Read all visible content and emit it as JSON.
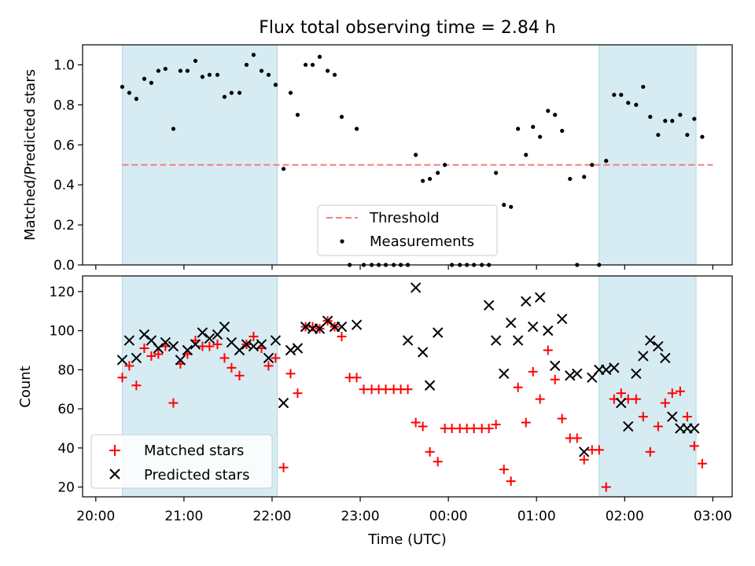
{
  "chart_data": [
    {
      "type": "scatter",
      "title": "Flux total observing time = 2.84 h",
      "ylabel": "Matched/Predicted stars",
      "xlabel": "",
      "xlim": [
        19.85,
        27.22
      ],
      "ylim": [
        0.0,
        1.1
      ],
      "yticks": [
        0.0,
        0.2,
        0.4,
        0.6,
        0.8,
        1.0
      ],
      "ytick_labels": [
        "0.0",
        "0.2",
        "0.4",
        "0.6",
        "0.8",
        "1.0"
      ],
      "grid": false,
      "legend_position": "lower center",
      "shaded_intervals": [
        [
          20.3,
          22.06
        ],
        [
          25.71,
          26.81
        ]
      ],
      "threshold": {
        "name": "Threshold",
        "value": 0.5,
        "x_range": [
          20.3,
          27.0
        ],
        "color": "#f08080"
      },
      "series": [
        {
          "name": "Measurements",
          "color": "#000000",
          "x": [
            20.3,
            20.38,
            20.46,
            20.55,
            20.63,
            20.71,
            20.79,
            20.88,
            20.96,
            21.04,
            21.13,
            21.21,
            21.29,
            21.38,
            21.46,
            21.54,
            21.63,
            21.71,
            21.79,
            21.88,
            21.96,
            22.04,
            22.13,
            22.21,
            22.29,
            22.38,
            22.46,
            22.54,
            22.63,
            22.71,
            22.79,
            22.88,
            22.96,
            23.04,
            23.13,
            23.21,
            23.29,
            23.38,
            23.46,
            23.54,
            23.63,
            23.71,
            23.79,
            23.88,
            23.96,
            24.04,
            24.13,
            24.21,
            24.29,
            24.38,
            24.46,
            24.54,
            24.63,
            24.71,
            24.79,
            24.88,
            24.96,
            25.04,
            25.13,
            25.21,
            25.29,
            25.38,
            25.46,
            25.54,
            25.63,
            25.71,
            25.79,
            25.88,
            25.96,
            26.04,
            26.13,
            26.21,
            26.29,
            26.38,
            26.46,
            26.54,
            26.63,
            26.71,
            26.79,
            26.88
          ],
          "y": [
            0.89,
            0.86,
            0.83,
            0.93,
            0.91,
            0.97,
            0.98,
            0.68,
            0.97,
            0.97,
            1.02,
            0.94,
            0.95,
            0.95,
            0.84,
            0.86,
            0.86,
            1.0,
            1.05,
            0.97,
            0.95,
            0.9,
            0.48,
            0.86,
            0.75,
            1.0,
            1.0,
            1.04,
            0.97,
            0.95,
            0.74,
            0.0,
            0.68,
            0.0,
            0.0,
            0.0,
            0.0,
            0.0,
            0.0,
            0.0,
            0.55,
            0.42,
            0.43,
            0.46,
            0.5,
            0.0,
            0.0,
            0.0,
            0.0,
            0.0,
            0.0,
            0.46,
            0.3,
            0.29,
            0.68,
            0.55,
            0.69,
            0.64,
            0.77,
            0.75,
            0.67,
            0.43,
            0.0,
            0.44,
            0.5,
            0.0,
            0.52,
            0.85,
            0.85,
            0.81,
            0.8,
            0.89,
            0.74,
            0.65,
            0.72,
            0.72,
            0.75,
            0.65,
            0.73,
            0.64
          ]
        }
      ]
    },
    {
      "type": "scatter",
      "title": "",
      "ylabel": "Count",
      "xlabel": "Time (UTC)",
      "xlim": [
        19.85,
        27.22
      ],
      "ylim": [
        15,
        128
      ],
      "yticks": [
        20,
        40,
        60,
        80,
        100,
        120
      ],
      "ytick_labels": [
        "20",
        "40",
        "60",
        "80",
        "100",
        "120"
      ],
      "xticks": [
        20,
        21,
        22,
        23,
        24,
        25,
        26,
        27
      ],
      "xtick_labels": [
        "20:00",
        "21:00",
        "22:00",
        "23:00",
        "00:00",
        "01:00",
        "02:00",
        "03:00"
      ],
      "grid": false,
      "legend_position": "lower left",
      "shaded_intervals": [
        [
          20.3,
          22.06
        ],
        [
          25.71,
          26.81
        ]
      ],
      "series": [
        {
          "name": "Matched stars",
          "color": "#ff0000",
          "marker": "+",
          "x": [
            20.3,
            20.38,
            20.46,
            20.55,
            20.63,
            20.71,
            20.79,
            20.88,
            20.96,
            21.04,
            21.13,
            21.21,
            21.29,
            21.38,
            21.46,
            21.54,
            21.63,
            21.71,
            21.79,
            21.88,
            21.96,
            22.04,
            22.13,
            22.21,
            22.29,
            22.38,
            22.46,
            22.54,
            22.63,
            22.71,
            22.79,
            22.88,
            22.96,
            23.04,
            23.13,
            23.21,
            23.29,
            23.38,
            23.46,
            23.54,
            23.63,
            23.71,
            23.79,
            23.88,
            23.96,
            24.04,
            24.13,
            24.21,
            24.29,
            24.38,
            24.46,
            24.54,
            24.63,
            24.71,
            24.79,
            24.88,
            24.96,
            25.04,
            25.13,
            25.21,
            25.29,
            25.38,
            25.46,
            25.54,
            25.63,
            25.71,
            25.79,
            25.88,
            25.96,
            26.04,
            26.13,
            26.21,
            26.29,
            26.38,
            26.46,
            26.54,
            26.63,
            26.71,
            26.79,
            26.88
          ],
          "y": [
            76,
            82,
            72,
            91,
            87,
            88,
            92,
            63,
            83,
            88,
            95,
            92,
            92,
            93,
            86,
            81,
            77,
            93,
            97,
            91,
            82,
            86,
            30,
            78,
            68,
            102,
            102,
            101,
            105,
            102,
            97,
            76,
            76,
            70,
            70,
            70,
            70,
            70,
            70,
            70,
            53,
            51,
            38,
            33,
            50,
            50,
            50,
            50,
            50,
            50,
            50,
            52,
            29,
            23,
            71,
            53,
            79,
            65,
            90,
            75,
            55,
            45,
            45,
            34,
            39,
            39,
            20,
            65,
            68,
            65,
            65,
            56,
            38,
            51,
            63,
            68,
            69,
            56,
            41,
            32
          ]
        },
        {
          "name": "Predicted stars",
          "color": "#000000",
          "marker": "x",
          "x": [
            20.3,
            20.38,
            20.46,
            20.55,
            20.63,
            20.71,
            20.79,
            20.88,
            20.96,
            21.04,
            21.13,
            21.21,
            21.29,
            21.38,
            21.46,
            21.54,
            21.63,
            21.71,
            21.79,
            21.88,
            21.96,
            22.04,
            22.13,
            22.21,
            22.29,
            22.38,
            22.46,
            22.54,
            22.63,
            22.71,
            22.79,
            22.96,
            23.54,
            23.63,
            23.71,
            23.79,
            23.88,
            24.46,
            24.54,
            24.63,
            24.71,
            24.79,
            24.88,
            24.96,
            25.04,
            25.13,
            25.21,
            25.29,
            25.38,
            25.46,
            25.54,
            25.63,
            25.71,
            25.79,
            25.88,
            25.96,
            26.04,
            26.13,
            26.21,
            26.29,
            26.38,
            26.46,
            26.54,
            26.63,
            26.71,
            26.79
          ],
          "y": [
            85,
            95,
            86,
            98,
            95,
            91,
            94,
            92,
            85,
            90,
            93,
            99,
            96,
            98,
            102,
            94,
            90,
            93,
            92,
            93,
            86,
            95,
            63,
            90,
            91,
            102,
            101,
            101,
            105,
            102,
            102,
            103,
            95,
            122,
            89,
            72,
            99,
            113,
            95,
            78,
            104,
            95,
            115,
            102,
            117,
            100,
            82,
            106,
            77,
            78,
            38,
            76,
            80,
            80,
            81,
            63,
            51,
            78,
            87,
            95,
            92,
            86,
            56,
            50,
            50,
            50
          ]
        }
      ]
    }
  ]
}
